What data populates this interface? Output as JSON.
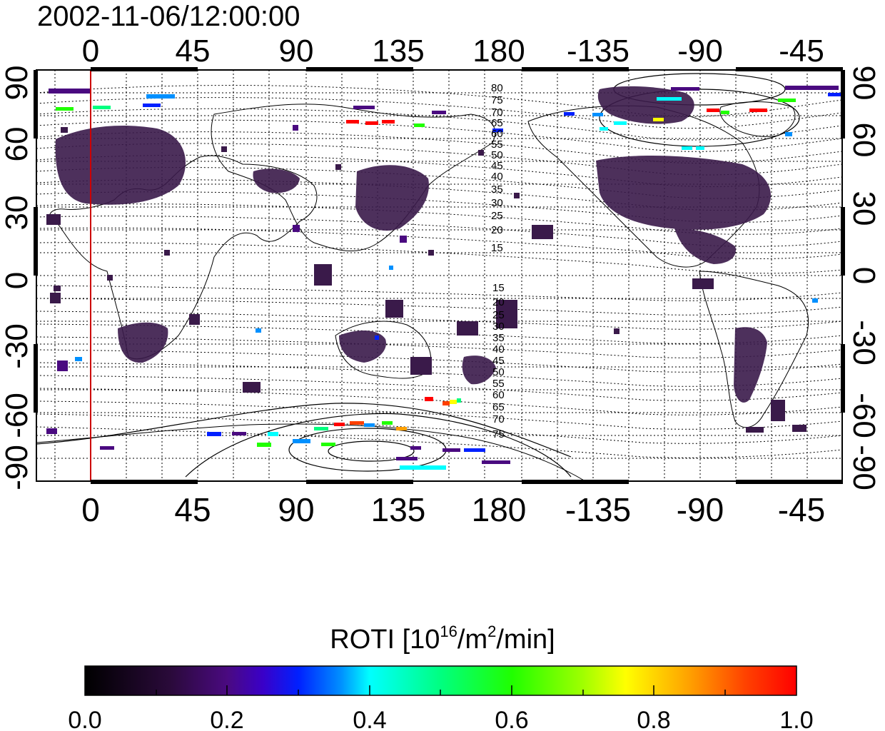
{
  "timestamp": "2002-11-06/12:00:00",
  "top_lon_ticks": [
    "0",
    "45",
    "90",
    "135",
    "180",
    "-135",
    "-90",
    "-45"
  ],
  "bottom_lon_ticks": [
    "0",
    "45",
    "90",
    "135",
    "180",
    "-135",
    "-90",
    "-45"
  ],
  "left_lat_ticks": [
    "90",
    "60",
    "30",
    "0",
    "-30",
    "-60",
    "-90"
  ],
  "right_lat_ticks": [
    "90",
    "60",
    "30",
    "0",
    "-30",
    "-60",
    "-90"
  ],
  "contour_labels_north": [
    "80",
    "75",
    "70",
    "65",
    "60",
    "55",
    "50",
    "45",
    "40",
    "35",
    "30",
    "25",
    "20",
    "15"
  ],
  "contour_labels_south": [
    "15",
    "20",
    "25",
    "30",
    "35",
    "40",
    "45",
    "50",
    "55",
    "60",
    "65",
    "70",
    "75"
  ],
  "colorbar": {
    "title_main": "ROTI  [10",
    "title_sup1": "16",
    "title_mid": "/m",
    "title_sup2": "2",
    "title_end": "/min]",
    "ticks": [
      "0.0",
      "0.2",
      "0.4",
      "0.6",
      "0.8",
      "1.0"
    ],
    "range": [
      0.0,
      1.0
    ],
    "colors": [
      "#000000",
      "#2a0a3a",
      "#4a0a80",
      "#3a00c8",
      "#0020ff",
      "#0090ff",
      "#00ffff",
      "#00ff80",
      "#20ff00",
      "#a0ff00",
      "#ffff00",
      "#ffa000",
      "#ff4000",
      "#ff0000"
    ]
  },
  "meridian_marker": {
    "lon": "0",
    "color": "#cc0000"
  },
  "colors": {
    "data_dominant": "#3a1a4a",
    "land_outline": "#000000",
    "grid": "#000000"
  }
}
